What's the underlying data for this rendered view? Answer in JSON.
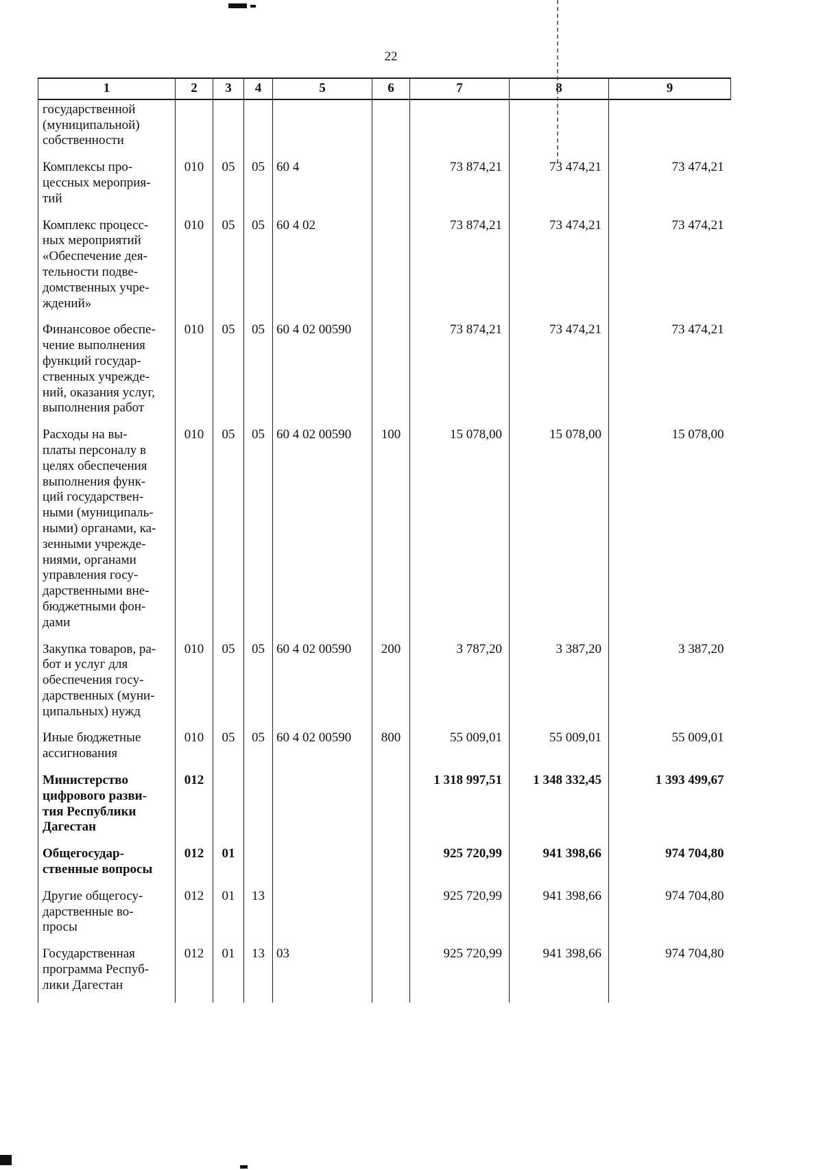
{
  "page_number": "22",
  "table": {
    "headers": [
      "1",
      "2",
      "3",
      "4",
      "5",
      "6",
      "7",
      "8",
      "9"
    ],
    "rows": [
      {
        "bold": false,
        "cells": [
          "государственной\n(муниципальной)\nсобственности",
          "",
          "",
          "",
          "",
          "",
          "",
          "",
          ""
        ]
      },
      {
        "bold": false,
        "cells": [
          "Комплексы про-\nцессных мероприя-\nтий",
          "010",
          "05",
          "05",
          "60 4",
          "",
          "73 874,21",
          "73 474,21",
          "73 474,21"
        ]
      },
      {
        "bold": false,
        "cells": [
          "Комплекс процесс-\nных мероприятий\n«Обеспечение дея-\nтельности подве-\nдомственных учре-\nждений»",
          "010",
          "05",
          "05",
          "60 4 02",
          "",
          "73 874,21",
          "73 474,21",
          "73 474,21"
        ]
      },
      {
        "bold": false,
        "cells": [
          "Финансовое обеспе-\nчение выполнения\nфункций государ-\nственных учрежде-\nний, оказания услуг,\nвыполнения работ",
          "010",
          "05",
          "05",
          "60 4 02 00590",
          "",
          "73 874,21",
          "73 474,21",
          "73 474,21"
        ]
      },
      {
        "bold": false,
        "cells": [
          "Расходы на вы-\nплаты персоналу в\nцелях обеспечения\nвыполнения функ-\nций государствен-\nными (муниципаль-\nными) органами, ка-\nзенными учрежде-\nниями, органами\nуправления госу-\nдарственными вне-\nбюджетными фон-\nдами",
          "010",
          "05",
          "05",
          "60 4 02 00590",
          "100",
          "15 078,00",
          "15 078,00",
          "15 078,00"
        ]
      },
      {
        "bold": false,
        "cells": [
          "Закупка товаров, ра-\nбот и услуг для\nобеспечения госу-\nдарственных (муни-\nципальных) нужд",
          "010",
          "05",
          "05",
          "60 4 02 00590",
          "200",
          "3 787,20",
          "3 387,20",
          "3 387,20"
        ]
      },
      {
        "bold": false,
        "cells": [
          "Иные бюджетные\nассигнования",
          "010",
          "05",
          "05",
          "60 4 02 00590",
          "800",
          "55 009,01",
          "55 009,01",
          "55 009,01"
        ]
      },
      {
        "bold": true,
        "cells": [
          "Министерство\nцифрового разви-\nтия Республики\nДагестан",
          "012",
          "",
          "",
          "",
          "",
          "1 318 997,51",
          "1 348 332,45",
          "1 393 499,67"
        ]
      },
      {
        "bold": true,
        "cells": [
          "Общегосудар-\nственные вопросы",
          "012",
          "01",
          "",
          "",
          "",
          "925 720,99",
          "941 398,66",
          "974 704,80"
        ]
      },
      {
        "bold": false,
        "cells": [
          "Другие общегосу-\nдарственные во-\nпросы",
          "012",
          "01",
          "13",
          "",
          "",
          "925 720,99",
          "941 398,66",
          "974 704,80"
        ]
      },
      {
        "bold": false,
        "cells": [
          "Государственная\nпрограмма Респуб-\nлики Дагестан",
          "012",
          "01",
          "13",
          "03",
          "",
          "925 720,99",
          "941 398,66",
          "974 704,80"
        ]
      }
    ]
  }
}
